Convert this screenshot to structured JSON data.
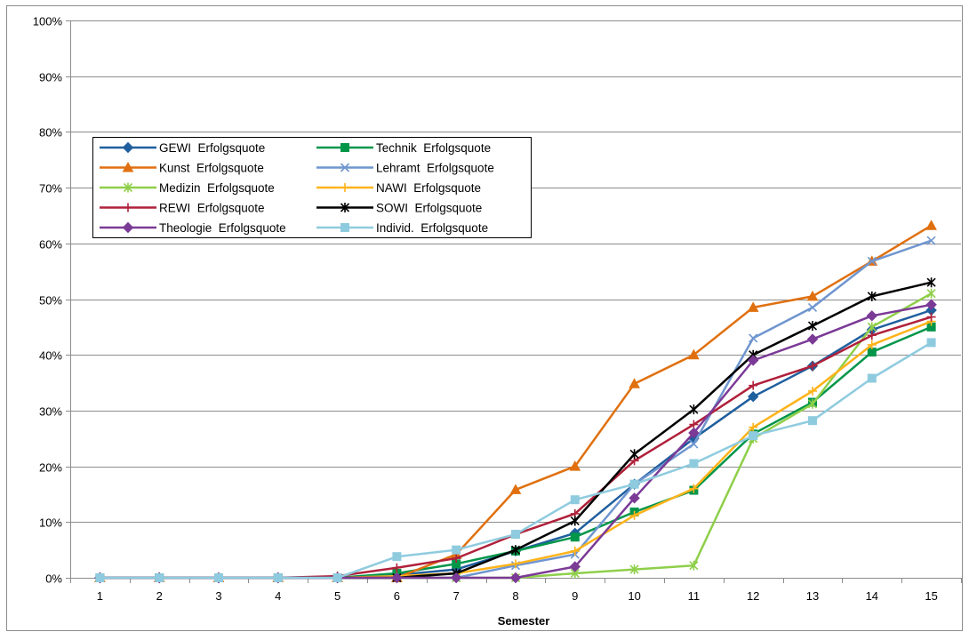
{
  "chart_data": {
    "type": "line",
    "title": "",
    "xlabel": "Semester",
    "ylabel": "",
    "categories": [
      "1",
      "2",
      "3",
      "4",
      "5",
      "6",
      "7",
      "8",
      "9",
      "10",
      "11",
      "12",
      "13",
      "14",
      "15"
    ],
    "y_ticks": [
      "0%",
      "10%",
      "20%",
      "30%",
      "40%",
      "50%",
      "60%",
      "70%",
      "80%",
      "90%",
      "100%"
    ],
    "ylim": [
      0,
      100
    ],
    "grid": "horizontal",
    "legend_position": "upper-left inside plot, two columns",
    "series": [
      {
        "name": "GEWI  Erfolgsquote",
        "color": "#1f5f9e",
        "marker": "diamond",
        "values": [
          0,
          0,
          0,
          0,
          0,
          0.5,
          1.5,
          4.8,
          8.0,
          16.8,
          25.0,
          32.5,
          38.0,
          44.5,
          48.0
        ]
      },
      {
        "name": "Technik  Erfolgsquote",
        "color": "#00964a",
        "marker": "square",
        "values": [
          0,
          0,
          0,
          0,
          0,
          0.8,
          2.5,
          4.8,
          7.3,
          11.8,
          15.7,
          25.8,
          31.5,
          40.5,
          45.0
        ]
      },
      {
        "name": "Kunst  Erfolgsquote",
        "color": "#e0700f",
        "marker": "triangle",
        "values": [
          0,
          0,
          0,
          0,
          0,
          0,
          4.2,
          15.8,
          20.0,
          34.8,
          40.0,
          48.5,
          50.5,
          56.8,
          63.2
        ]
      },
      {
        "name": "Lehramt  Erfolgsquote",
        "color": "#6f96cf",
        "marker": "x",
        "values": [
          0,
          0,
          0,
          0,
          0,
          0,
          0,
          2.2,
          4.2,
          16.8,
          24.0,
          43.0,
          48.5,
          56.8,
          60.5
        ]
      },
      {
        "name": "Medizin  Erfolgsquote",
        "color": "#8fcf4a",
        "marker": "asterisk",
        "values": [
          0,
          0,
          0,
          0,
          0,
          0,
          0,
          0,
          0.8,
          1.5,
          2.2,
          25.0,
          31.2,
          45.0,
          51.0
        ]
      },
      {
        "name": "NAWI  Erfolgsquote",
        "color": "#ffb31a",
        "marker": "plus",
        "values": [
          0,
          0,
          0,
          0,
          0,
          0.3,
          0.8,
          2.5,
          4.8,
          11.2,
          16.0,
          27.0,
          33.5,
          41.8,
          46.0
        ]
      },
      {
        "name": "REWI  Erfolgsquote",
        "color": "#b0203a",
        "marker": "plus",
        "values": [
          0,
          0,
          0,
          0,
          0.3,
          1.8,
          3.5,
          7.8,
          11.5,
          21.0,
          27.5,
          34.5,
          38.0,
          43.5,
          46.8
        ]
      },
      {
        "name": "SOWI  Erfolgsquote",
        "color": "#000000",
        "marker": "asterisk",
        "values": [
          0,
          0,
          0,
          0,
          0,
          0,
          0.8,
          5.0,
          10.2,
          22.2,
          30.2,
          40.0,
          45.2,
          50.5,
          53.0
        ]
      },
      {
        "name": "Theologie  Erfolgsquote",
        "color": "#7b3a96",
        "marker": "diamond",
        "values": [
          0,
          0,
          0,
          0,
          0,
          0,
          0,
          0,
          2.0,
          14.3,
          26.0,
          39.0,
          42.8,
          47.0,
          49.0
        ]
      },
      {
        "name": "Individ.  Erfolgsquote",
        "color": "#8fcbdf",
        "marker": "square",
        "values": [
          0,
          0,
          0,
          0,
          0,
          3.8,
          5.0,
          7.8,
          14.0,
          16.8,
          20.5,
          25.5,
          28.2,
          35.8,
          42.2
        ]
      }
    ]
  }
}
